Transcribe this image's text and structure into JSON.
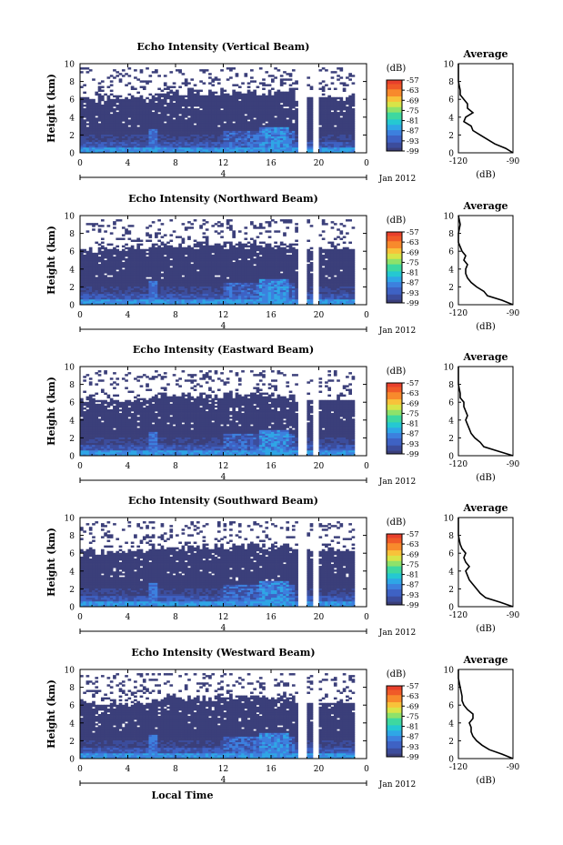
{
  "colors": {
    "background_fill": "#3b3f7a",
    "text": "#000000",
    "colormap": [
      "#3b3f7a",
      "#3c4d9c",
      "#3e62c4",
      "#3d80de",
      "#2fa6e6",
      "#25c8d2",
      "#3ed8a0",
      "#8ee26a",
      "#d8e448",
      "#f8c23a",
      "#f88a2c",
      "#f05a28",
      "#e8402c"
    ]
  },
  "shared": {
    "ylabel": "Height (km)",
    "yticks": [
      "0",
      "2",
      "4",
      "6",
      "8",
      "10"
    ],
    "xticks": [
      "0",
      "4",
      "8",
      "12",
      "16",
      "20",
      "0"
    ],
    "date_marker": "4",
    "date_label": "Jan 2012",
    "colorbar_unit": "(dB)",
    "colorbar_ticks": [
      "-57",
      "-63",
      "-69",
      "-75",
      "-81",
      "-87",
      "-93",
      "-99"
    ],
    "avg_title": "Average",
    "avg_xticks": [
      "-120",
      "-90"
    ],
    "avg_xlabel": "(dB)",
    "xlabel": "Local Time"
  },
  "chart_data": [
    {
      "type": "heatmap",
      "title": "Echo Intensity (Vertical Beam)",
      "xlim": [
        0,
        24
      ],
      "ylim": [
        0,
        10
      ],
      "clim": [
        -99,
        -57
      ],
      "avg_profile": {
        "xlim": [
          -120,
          -90
        ],
        "height_km": [
          0,
          0.5,
          1,
          1.5,
          2,
          2.5,
          3,
          3.5,
          4,
          4.5,
          5,
          5.5,
          6,
          6.5,
          7,
          8,
          9,
          10
        ],
        "db": [
          -90,
          -94,
          -100,
          -104,
          -108,
          -112,
          -113,
          -117,
          -116,
          -112,
          -115,
          -115,
          -117,
          -119,
          -119,
          -120,
          -120,
          -120
        ]
      }
    },
    {
      "type": "heatmap",
      "title": "Echo Intensity (Northward Beam)",
      "xlim": [
        0,
        24
      ],
      "ylim": [
        0,
        10
      ],
      "clim": [
        -99,
        -57
      ],
      "avg_profile": {
        "xlim": [
          -120,
          -90
        ],
        "height_km": [
          0,
          0.5,
          1,
          1.5,
          2,
          2.5,
          3,
          3.5,
          4,
          4.5,
          5,
          5.5,
          6,
          6.5,
          7,
          8,
          9,
          10
        ],
        "db": [
          -90,
          -96,
          -104,
          -106,
          -110,
          -113,
          -115,
          -116,
          -116,
          -115,
          -117,
          -116,
          -118,
          -119,
          -120,
          -120,
          -119,
          -120
        ]
      }
    },
    {
      "type": "heatmap",
      "title": "Echo Intensity (Eastward Beam)",
      "xlim": [
        0,
        24
      ],
      "ylim": [
        0,
        10
      ],
      "clim": [
        -99,
        -57
      ],
      "avg_profile": {
        "xlim": [
          -120,
          -90
        ],
        "height_km": [
          0,
          0.5,
          1,
          1.5,
          2,
          2.5,
          3,
          3.5,
          4,
          4.5,
          5,
          5.5,
          6,
          6.5,
          7,
          8,
          9,
          10
        ],
        "db": [
          -90,
          -98,
          -106,
          -108,
          -111,
          -113,
          -114,
          -115,
          -116,
          -115,
          -116,
          -117,
          -117,
          -119,
          -119,
          -120,
          -120,
          -120
        ]
      }
    },
    {
      "type": "heatmap",
      "title": "Echo Intensity (Southward Beam)",
      "xlim": [
        0,
        24
      ],
      "ylim": [
        0,
        10
      ],
      "clim": [
        -99,
        -57
      ],
      "avg_profile": {
        "xlim": [
          -120,
          -90
        ],
        "height_km": [
          0,
          0.5,
          1,
          1.5,
          2,
          2.5,
          3,
          3.5,
          4,
          4.5,
          5,
          5.5,
          6,
          6.5,
          7,
          8,
          9,
          10
        ],
        "db": [
          -90,
          -97,
          -105,
          -108,
          -110,
          -112,
          -114,
          -115,
          -116,
          -114,
          -116,
          -117,
          -116,
          -118,
          -119,
          -120,
          -120,
          -120
        ]
      }
    },
    {
      "type": "heatmap",
      "title": "Echo Intensity (Westward Beam)",
      "xlim": [
        0,
        24
      ],
      "ylim": [
        0,
        10
      ],
      "clim": [
        -99,
        -57
      ],
      "avg_profile": {
        "xlim": [
          -120,
          -90
        ],
        "height_km": [
          0,
          0.5,
          1,
          1.5,
          2,
          2.5,
          3,
          3.5,
          4,
          4.5,
          5,
          5.5,
          6,
          6.5,
          7,
          8,
          9,
          10
        ],
        "db": [
          -90,
          -96,
          -103,
          -107,
          -110,
          -112,
          -113,
          -113,
          -114,
          -112,
          -112,
          -115,
          -117,
          -118,
          -118,
          -119,
          -120,
          -120
        ]
      }
    }
  ]
}
